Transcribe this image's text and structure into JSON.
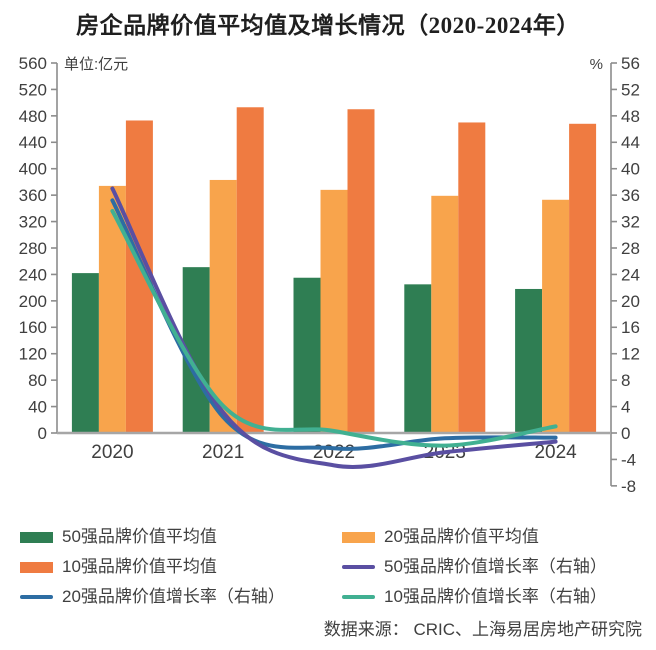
{
  "title": "房企品牌价值平均值及增长情况（2020-2024年）",
  "source": "数据来源： CRIC、上海易居房地产研究院",
  "colors": {
    "green": "#2F7E53",
    "orange": "#F8A44C",
    "deep_orange": "#EF7B41",
    "purple": "#5A4FA2",
    "blue": "#2D6DA3",
    "teal": "#41B092",
    "axis_gray": "#8C8C8C",
    "baseline_gray": "#A6A6A6",
    "text_gray": "#404040"
  },
  "chart_data": {
    "type": "combo-bar-line",
    "categories": [
      "2020",
      "2021",
      "2022",
      "2023",
      "2024"
    ],
    "bar_series": [
      {
        "name": "50强品牌价值平均值",
        "color": "green",
        "axis": "left",
        "values": [
          242,
          251,
          235,
          225,
          218
        ]
      },
      {
        "name": "20强品牌价值平均值",
        "color": "orange",
        "axis": "left",
        "values": [
          374,
          383,
          368,
          359,
          353
        ]
      },
      {
        "name": "10强品牌价值平均值",
        "color": "deep_orange",
        "axis": "left",
        "values": [
          473,
          493,
          490,
          470,
          468
        ]
      }
    ],
    "line_series": [
      {
        "name": "50强品牌价值增长率（右轴）",
        "color": "purple",
        "axis": "right",
        "values": [
          37.0,
          3.1,
          -4.9,
          -2.9,
          -1.3
        ]
      },
      {
        "name": "20强品牌价值增长率（右轴）",
        "color": "blue",
        "axis": "right",
        "values": [
          35.2,
          2.4,
          -2.3,
          -0.8,
          -0.7
        ]
      },
      {
        "name": "10强品牌价值增长率（右轴）",
        "color": "teal",
        "axis": "right",
        "values": [
          33.6,
          4.1,
          0.3,
          -1.9,
          1.0
        ]
      }
    ],
    "left_axis": {
      "title": "单位:亿元",
      "min": 0,
      "max": 560,
      "step": 40
    },
    "right_axis": {
      "title": "%",
      "min": -8,
      "max": 56,
      "step": 4
    },
    "grid": false,
    "legend_position": "bottom"
  },
  "legend": [
    {
      "label": "50强品牌价值平均值",
      "swatch": "rect",
      "color": "green"
    },
    {
      "label": "20强品牌价值平均值",
      "swatch": "rect",
      "color": "orange"
    },
    {
      "label": "10强品牌价值平均值",
      "swatch": "rect",
      "color": "deep_orange"
    },
    {
      "label": "50强品牌价值增长率（右轴）",
      "swatch": "line",
      "color": "purple"
    },
    {
      "label": "20强品牌价值增长率（右轴）",
      "swatch": "line",
      "color": "blue"
    },
    {
      "label": "10强品牌价值增长率（右轴）",
      "swatch": "line",
      "color": "teal"
    }
  ]
}
